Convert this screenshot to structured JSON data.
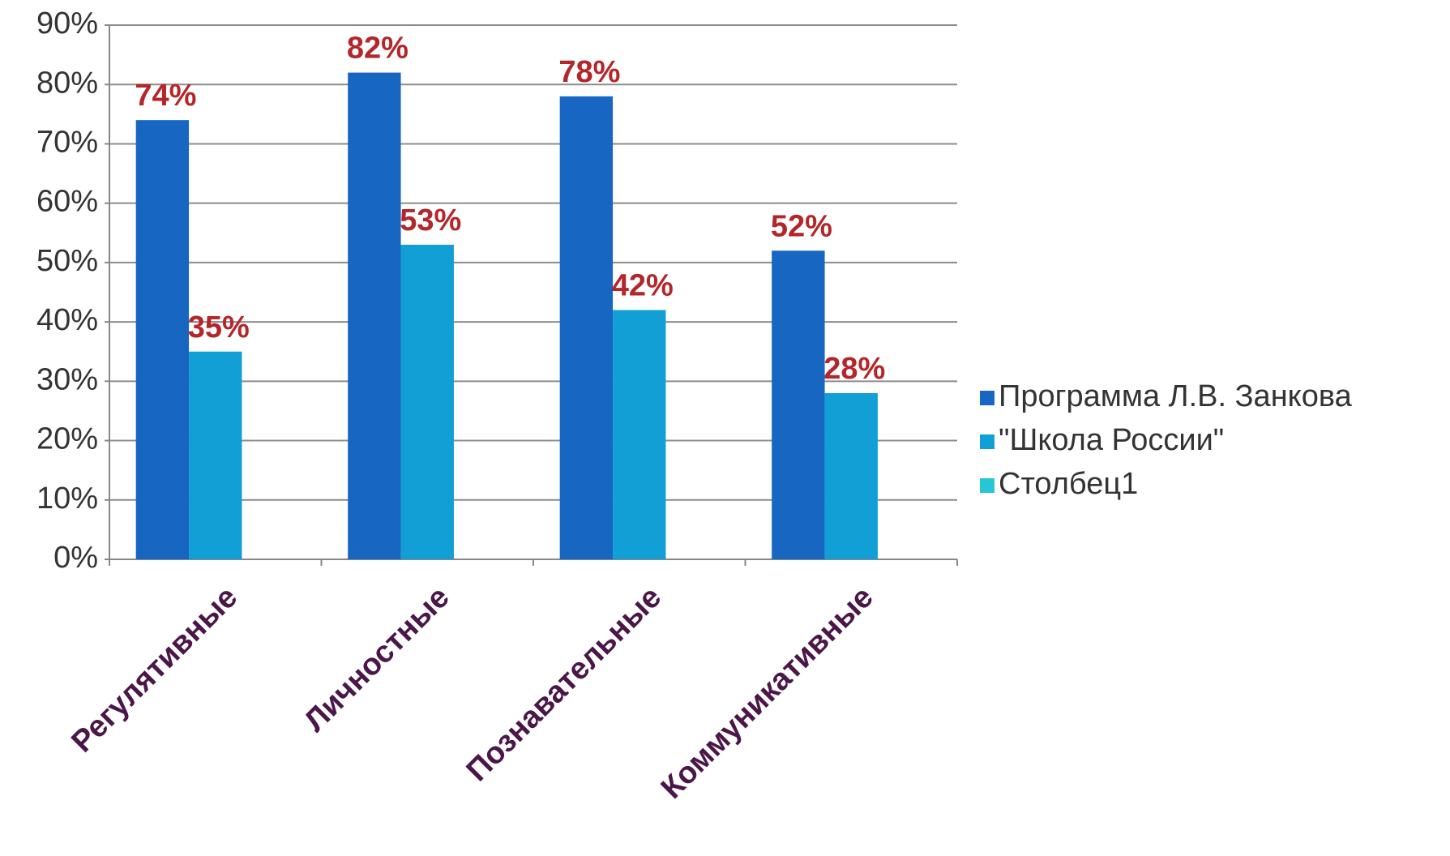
{
  "chart_data": {
    "type": "bar",
    "categories": [
      "Регулятивные",
      "Личностные",
      "Познавательные",
      "Коммуникативные"
    ],
    "series": [
      {
        "name": "Программа Л.В. Занкова",
        "color": "#1766c2",
        "values": [
          74,
          82,
          78,
          52
        ],
        "value_labels": [
          "74%",
          "82%",
          "78%",
          "52%"
        ]
      },
      {
        "name": "\"Школа России\"",
        "color": "#119fd6",
        "values": [
          35,
          53,
          42,
          28
        ],
        "value_labels": [
          "35%",
          "53%",
          "42%",
          "28%"
        ]
      },
      {
        "name": "Столбец1",
        "color": "#27c6d6",
        "values": [
          null,
          null,
          null,
          null
        ]
      }
    ],
    "ylim": [
      0,
      90
    ],
    "yticks": [
      {
        "value": 0,
        "label": "0%"
      },
      {
        "value": 10,
        "label": "10%"
      },
      {
        "value": 20,
        "label": "20%"
      },
      {
        "value": 30,
        "label": "30%"
      },
      {
        "value": 40,
        "label": "40%"
      },
      {
        "value": 50,
        "label": "50%"
      },
      {
        "value": 60,
        "label": "60%"
      },
      {
        "value": 70,
        "label": "70%"
      },
      {
        "value": 80,
        "label": "80%"
      },
      {
        "value": 90,
        "label": "90%"
      }
    ],
    "grid": true,
    "legend": "right"
  }
}
